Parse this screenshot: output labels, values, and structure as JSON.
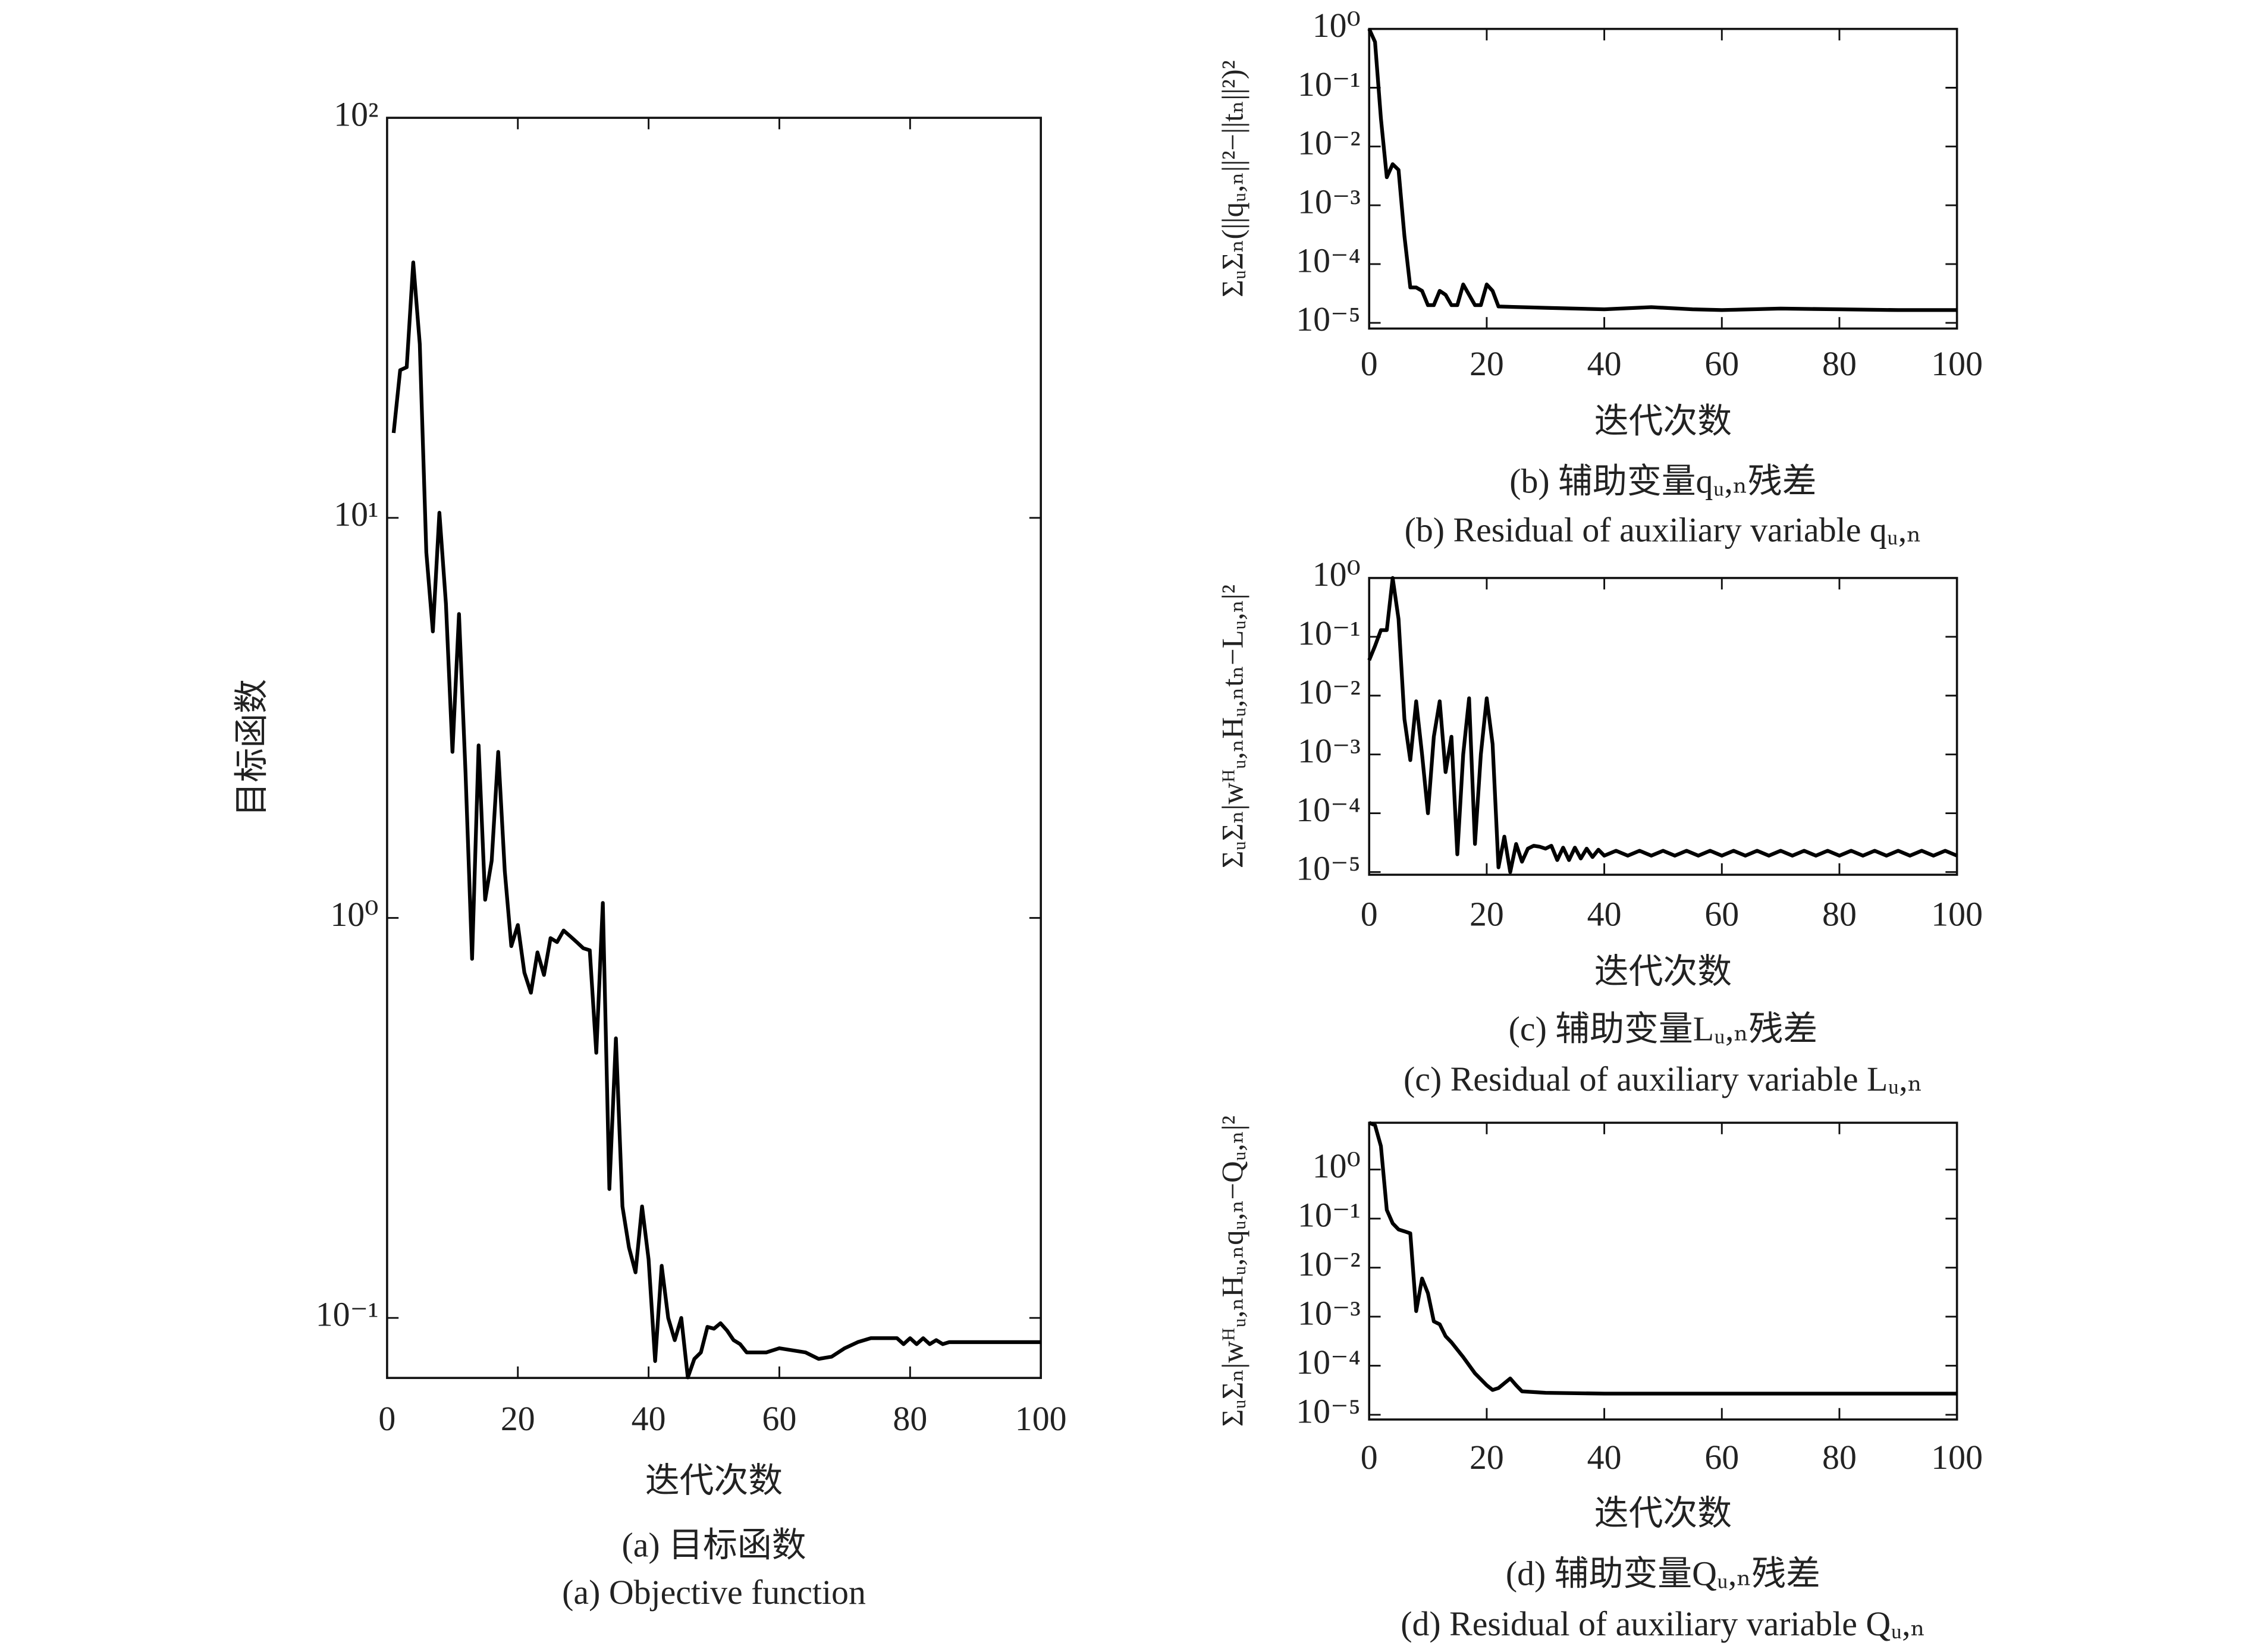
{
  "chart_data": [
    {
      "type": "line",
      "yscale": "log",
      "color": "#000000",
      "xlabel": "迭代次数",
      "ylabel": "目标函数",
      "caption_cn": "(a) 目标函数",
      "caption_en": "(a) Objective function",
      "xlim": [
        0,
        100
      ],
      "xticks": [
        0,
        20,
        40,
        60,
        80,
        100
      ],
      "ylim": [
        0.0708,
        100
      ],
      "yticks": [
        {
          "value": 100,
          "label": "10²"
        },
        {
          "value": 10,
          "label": "10¹"
        },
        {
          "value": 1,
          "label": "10⁰"
        },
        {
          "value": 0.1,
          "label": "10⁻¹"
        }
      ],
      "x": [
        1,
        2,
        3,
        4,
        5,
        6,
        7,
        8,
        9,
        10,
        11,
        12,
        13,
        14,
        15,
        16,
        17,
        18,
        19,
        20,
        21,
        22,
        23,
        24,
        25,
        26,
        27,
        28,
        29,
        30,
        31,
        32,
        33,
        34,
        35,
        36,
        37,
        38,
        39,
        40,
        41,
        42,
        43,
        44,
        45,
        46,
        47,
        48,
        49,
        50,
        51,
        52,
        53,
        54,
        55,
        56,
        58,
        60,
        62,
        64,
        66,
        68,
        70,
        72,
        74,
        76,
        78,
        79,
        80,
        81,
        82,
        83,
        84,
        85,
        86,
        88,
        90,
        95,
        100
      ],
      "values": [
        16.3,
        23.4,
        23.8,
        43.5,
        27.2,
        8.2,
        5.2,
        10.3,
        6.1,
        2.6,
        5.75,
        2.3,
        0.79,
        2.7,
        1.11,
        1.39,
        2.6,
        1.31,
        0.85,
        0.96,
        0.73,
        0.65,
        0.82,
        0.72,
        0.89,
        0.87,
        0.93,
        0.9,
        0.87,
        0.84,
        0.83,
        0.46,
        1.09,
        0.21,
        0.5,
        0.19,
        0.15,
        0.13,
        0.19,
        0.14,
        0.078,
        0.135,
        0.1,
        0.088,
        0.1,
        0.071,
        0.079,
        0.082,
        0.095,
        0.094,
        0.097,
        0.093,
        0.088,
        0.086,
        0.082,
        0.082,
        0.082,
        0.084,
        0.083,
        0.082,
        0.079,
        0.08,
        0.084,
        0.087,
        0.089,
        0.089,
        0.089,
        0.086,
        0.089,
        0.086,
        0.089,
        0.086,
        0.088,
        0.086,
        0.087,
        0.087,
        0.087,
        0.087,
        0.087
      ]
    },
    {
      "type": "line",
      "yscale": "log",
      "color": "#000000",
      "xlabel": "迭代次数",
      "ylabel": "ΣᵤΣₙ(||qᵤ,ₙ||²−||tₙ||²)²",
      "caption_cn": "(b) 辅助变量qᵤ,ₙ残差",
      "caption_en": "(b) Residual of auxiliary variable qᵤ,ₙ",
      "xlim": [
        0,
        100
      ],
      "xticks": [
        0,
        20,
        40,
        60,
        80,
        100
      ],
      "ylim": [
        8e-06,
        1
      ],
      "yticks": [
        {
          "value": 1,
          "label": "10⁰"
        },
        {
          "value": 0.1,
          "label": "10⁻¹"
        },
        {
          "value": 0.01,
          "label": "10⁻²"
        },
        {
          "value": 0.001,
          "label": "10⁻³"
        },
        {
          "value": 0.0001,
          "label": "10⁻⁴"
        },
        {
          "value": 1e-05,
          "label": "10⁻⁵"
        }
      ],
      "x": [
        0,
        1,
        2,
        3,
        4,
        5,
        6,
        7,
        8,
        9,
        10,
        11,
        12,
        13,
        14,
        15,
        16,
        17,
        18,
        19,
        20,
        21,
        22,
        30,
        40,
        48,
        55,
        60,
        70,
        80,
        90,
        100
      ],
      "values": [
        1,
        0.6,
        0.03,
        0.003,
        0.005,
        0.004,
        0.0003,
        4e-05,
        4e-05,
        3.5e-05,
        2e-05,
        2e-05,
        3.5e-05,
        3e-05,
        2e-05,
        2e-05,
        4.5e-05,
        3e-05,
        2e-05,
        2e-05,
        4.5e-05,
        3.5e-05,
        1.9e-05,
        1.8e-05,
        1.7e-05,
        1.85e-05,
        1.7e-05,
        1.65e-05,
        1.75e-05,
        1.7e-05,
        1.65e-05,
        1.65e-05
      ]
    },
    {
      "type": "line",
      "yscale": "log",
      "color": "#000000",
      "xlabel": "迭代次数",
      "ylabel": "ΣᵤΣₙ|wᴴᵤ,ₙHᵤ,ₙtₙ−Lᵤ,ₙ|²",
      "caption_cn": "(c) 辅助变量Lᵤ,ₙ残差",
      "caption_en": "(c) Residual of auxiliary variable Lᵤ,ₙ",
      "xlim": [
        0,
        100
      ],
      "xticks": [
        0,
        20,
        40,
        60,
        80,
        100
      ],
      "ylim": [
        9e-06,
        1
      ],
      "yticks": [
        {
          "value": 1,
          "label": "10⁰"
        },
        {
          "value": 0.1,
          "label": "10⁻¹"
        },
        {
          "value": 0.01,
          "label": "10⁻²"
        },
        {
          "value": 0.001,
          "label": "10⁻³"
        },
        {
          "value": 0.0001,
          "label": "10⁻⁴"
        },
        {
          "value": 1e-05,
          "label": "10⁻⁵"
        }
      ],
      "x": [
        0,
        1,
        2,
        3,
        4,
        5,
        6,
        7,
        8,
        9,
        10,
        11,
        12,
        13,
        14,
        15,
        16,
        17,
        18,
        19,
        20,
        21,
        22,
        23,
        24,
        25,
        26,
        27,
        28,
        29,
        30,
        31,
        32,
        33,
        34,
        35,
        36,
        37,
        38,
        39,
        40,
        42,
        44,
        46,
        48,
        50,
        52,
        54,
        56,
        58,
        60,
        62,
        64,
        66,
        68,
        70,
        72,
        74,
        76,
        78,
        80,
        82,
        84,
        86,
        88,
        90,
        92,
        94,
        96,
        98,
        100
      ],
      "values": [
        0.04,
        0.07,
        0.13,
        0.13,
        1,
        0.2,
        0.004,
        0.0008,
        0.008,
        0.001,
        0.0001,
        0.002,
        0.008,
        0.0005,
        0.002,
        2e-05,
        0.001,
        0.009,
        3e-05,
        0.001,
        0.009,
        0.0015,
        1.2e-05,
        4e-05,
        1e-05,
        3e-05,
        1.5e-05,
        2.5e-05,
        2.8e-05,
        2.7e-05,
        2.5e-05,
        2.8e-05,
        1.6e-05,
        2.6e-05,
        1.6e-05,
        2.6e-05,
        1.7e-05,
        2.5e-05,
        1.8e-05,
        2.4e-05,
        1.9e-05,
        2.3e-05,
        1.9e-05,
        2.3e-05,
        1.9e-05,
        2.3e-05,
        1.9e-05,
        2.3e-05,
        1.9e-05,
        2.3e-05,
        1.9e-05,
        2.3e-05,
        1.9e-05,
        2.3e-05,
        1.9e-05,
        2.3e-05,
        1.9e-05,
        2.3e-05,
        1.9e-05,
        2.3e-05,
        1.9e-05,
        2.3e-05,
        1.9e-05,
        2.3e-05,
        1.9e-05,
        2.3e-05,
        1.9e-05,
        2.3e-05,
        1.9e-05,
        2.3e-05,
        1.9e-05
      ]
    },
    {
      "type": "line",
      "yscale": "log",
      "color": "#000000",
      "xlabel": "迭代次数",
      "ylabel": "ΣᵤΣₙ|wᴴᵤ,ₙHᵤ,ₙqᵤ,ₙ−Qᵤ,ₙ|²",
      "caption_cn": "(d) 辅助变量Qᵤ,ₙ残差",
      "caption_en": "(d) Residual of auxiliary variable Qᵤ,ₙ",
      "xlim": [
        0,
        100
      ],
      "xticks": [
        0,
        20,
        40,
        60,
        80,
        100
      ],
      "ylim": [
        8e-06,
        9
      ],
      "yticks": [
        {
          "value": 1,
          "label": "10⁰"
        },
        {
          "value": 0.1,
          "label": "10⁻¹"
        },
        {
          "value": 0.01,
          "label": "10⁻²"
        },
        {
          "value": 0.001,
          "label": "10⁻³"
        },
        {
          "value": 0.0001,
          "label": "10⁻⁴"
        },
        {
          "value": 1e-05,
          "label": "10⁻⁵"
        }
      ],
      "x": [
        0,
        1,
        2,
        3,
        4,
        5,
        6,
        7,
        8,
        9,
        10,
        11,
        12,
        13,
        14,
        16,
        18,
        20,
        21,
        22,
        24,
        25,
        26,
        30,
        40,
        100
      ],
      "values": [
        9,
        8,
        3,
        0.15,
        0.08,
        0.06,
        0.055,
        0.05,
        0.0013,
        0.006,
        0.003,
        0.0008,
        0.0007,
        0.0004,
        0.0003,
        0.00015,
        7e-05,
        4e-05,
        3.2e-05,
        3.5e-05,
        5.5e-05,
        4e-05,
        3e-05,
        2.8e-05,
        2.7e-05,
        2.7e-05
      ]
    }
  ]
}
